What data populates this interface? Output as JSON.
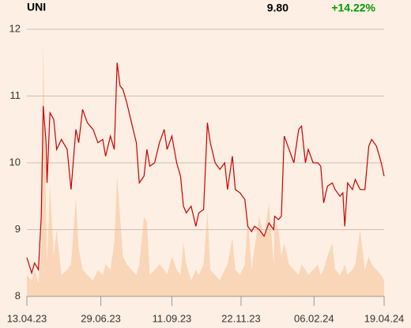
{
  "chart_data": {
    "type": "line",
    "title": "UNI",
    "price_label": "9.80",
    "change_label": "+14.22%",
    "change_color": "#009900",
    "x": [
      "13.04.23",
      "18.04.23",
      "21.04.23",
      "25.04.23",
      "28.04.23",
      "30.04.23",
      "03.05.23",
      "04.05.23",
      "07.05.23",
      "11.05.23",
      "14.05.23",
      "19.05.23",
      "25.05.23",
      "29.05.23",
      "03.06.23",
      "06.06.23",
      "10.06.23",
      "15.06.23",
      "21.06.23",
      "26.06.23",
      "01.07.23",
      "04.07.23",
      "09.07.23",
      "13.07.23",
      "16.07.23",
      "19.07.23",
      "22.07.23",
      "26.07.23",
      "31.07.23",
      "05.08.23",
      "08.08.23",
      "13.08.23",
      "16.08.23",
      "19.08.23",
      "24.08.23",
      "29.08.23",
      "03.09.23",
      "06.09.23",
      "11.09.23",
      "16.09.23",
      "20.09.23",
      "23.09.23",
      "26.09.23",
      "01.10.23",
      "06.10.23",
      "09.10.23",
      "14.10.23",
      "18.10.23",
      "21.10.23",
      "26.10.23",
      "31.10.23",
      "05.11.23",
      "08.11.23",
      "13.11.23",
      "16.11.23",
      "21.11.23",
      "26.11.23",
      "29.11.23",
      "03.12.23",
      "06.12.23",
      "11.12.23",
      "16.12.23",
      "21.12.23",
      "26.12.23",
      "27.12.23",
      "31.12.23",
      "03.01.24",
      "06.01.24",
      "11.01.24",
      "16.01.24",
      "21.01.24",
      "24.01.24",
      "28.01.24",
      "31.01.24",
      "05.02.24",
      "10.02.24",
      "13.02.24",
      "16.02.24",
      "20.02.24",
      "25.02.24",
      "28.02.24",
      "04.03.24",
      "07.03.24",
      "09.03.24",
      "12.03.24",
      "17.03.24",
      "20.03.24",
      "25.03.24",
      "30.03.24",
      "03.04.24",
      "06.04.24",
      "11.04.24",
      "16.04.24",
      "19.04.24"
    ],
    "series": [
      {
        "color": "#cc0000",
        "values": [
          8.58,
          8.35,
          8.5,
          8.4,
          9.2,
          10.85,
          10.3,
          9.7,
          10.75,
          10.65,
          10.2,
          10.35,
          10.2,
          9.6,
          10.5,
          10.3,
          10.8,
          10.6,
          10.5,
          10.3,
          10.35,
          10.1,
          10.4,
          10.2,
          11.5,
          11.15,
          11.1,
          10.9,
          10.6,
          10.3,
          9.7,
          9.8,
          10.2,
          9.95,
          10.0,
          10.3,
          10.5,
          10.2,
          10.4,
          10.0,
          9.8,
          9.35,
          9.25,
          9.35,
          9.05,
          9.25,
          9.3,
          10.6,
          10.3,
          10.0,
          9.9,
          10.0,
          9.6,
          10.1,
          9.6,
          9.55,
          9.45,
          9.05,
          8.97,
          9.05,
          9.0,
          8.9,
          9.1,
          9.0,
          9.2,
          9.15,
          9.2,
          10.4,
          10.2,
          10.0,
          10.5,
          10.55,
          10.0,
          10.2,
          10.0,
          10.0,
          9.95,
          9.4,
          9.65,
          9.7,
          9.6,
          9.5,
          9.55,
          9.05,
          9.7,
          9.6,
          9.75,
          9.6,
          9.6,
          10.25,
          10.35,
          10.25,
          10.0,
          9.8
        ]
      },
      {
        "color": "#f9d6b8",
        "axis": "y2",
        "values": [
          8,
          6,
          10,
          5,
          20,
          95,
          30,
          12,
          42,
          15,
          25,
          8,
          10,
          12,
          37,
          18,
          10,
          8,
          6,
          10,
          8,
          12,
          10,
          20,
          45,
          30,
          15,
          12,
          10,
          8,
          12,
          30,
          28,
          8,
          10,
          12,
          10,
          8,
          15,
          10,
          8,
          20,
          12,
          6,
          10,
          8,
          12,
          32,
          10,
          8,
          6,
          10,
          12,
          22,
          10,
          8,
          12,
          30,
          10,
          18,
          30,
          22,
          35,
          12,
          28,
          25,
          15,
          20,
          12,
          10,
          8,
          12,
          10,
          8,
          10,
          12,
          8,
          10,
          15,
          20,
          10,
          8,
          10,
          12,
          8,
          10,
          12,
          25,
          10,
          15,
          12,
          10,
          8,
          6
        ]
      }
    ],
    "xlim": [
      "13.04.23",
      "19.04.24"
    ],
    "xticks": [
      "13.04.23",
      "29.06.23",
      "11.09.23",
      "22.11.23",
      "06.02.24",
      "19.04.24"
    ],
    "ylim": [
      8,
      12
    ],
    "yticks": [
      8,
      9,
      10,
      11,
      12
    ],
    "y2lim": [
      0,
      100
    ],
    "grid": true
  }
}
